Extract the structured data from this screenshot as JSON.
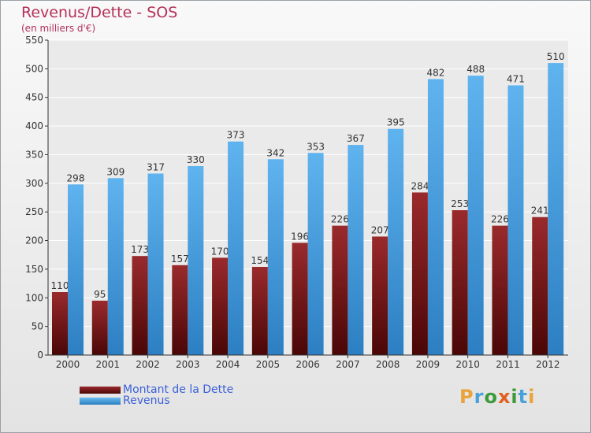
{
  "chart_data": {
    "type": "bar",
    "title": "Revenus/Dette - SOS",
    "subtitle": "(en milliers d'€)",
    "categories": [
      "2000",
      "2001",
      "2002",
      "2003",
      "2004",
      "2005",
      "2006",
      "2007",
      "2008",
      "2009",
      "2010",
      "2011",
      "2012"
    ],
    "series": [
      {
        "name": "Montant de la Dette",
        "values": [
          110,
          95,
          173,
          157,
          170,
          154,
          196,
          226,
          207,
          284,
          253,
          226,
          241
        ],
        "color": "#7a1518"
      },
      {
        "name": "Revenus",
        "values": [
          298,
          309,
          317,
          330,
          373,
          342,
          353,
          367,
          395,
          482,
          488,
          471,
          510
        ],
        "color": "#4ba3e3"
      }
    ],
    "yticks": [
      0,
      50,
      100,
      150,
      200,
      250,
      300,
      350,
      400,
      450,
      500,
      550
    ],
    "ylim": [
      0,
      550
    ],
    "grid": true,
    "legend_position": "bottom-left"
  },
  "logo": {
    "letters": [
      {
        "ch": "P",
        "color": "#e8a33a"
      },
      {
        "ch": "r",
        "color": "#4aa0d8"
      },
      {
        "ch": "o",
        "color": "#3c9a3c"
      },
      {
        "ch": "x",
        "color": "#e06020"
      },
      {
        "ch": "i",
        "color": "#3c9a3c"
      },
      {
        "ch": "t",
        "color": "#4aa0d8"
      },
      {
        "ch": "i",
        "color": "#e8a33a"
      }
    ]
  }
}
